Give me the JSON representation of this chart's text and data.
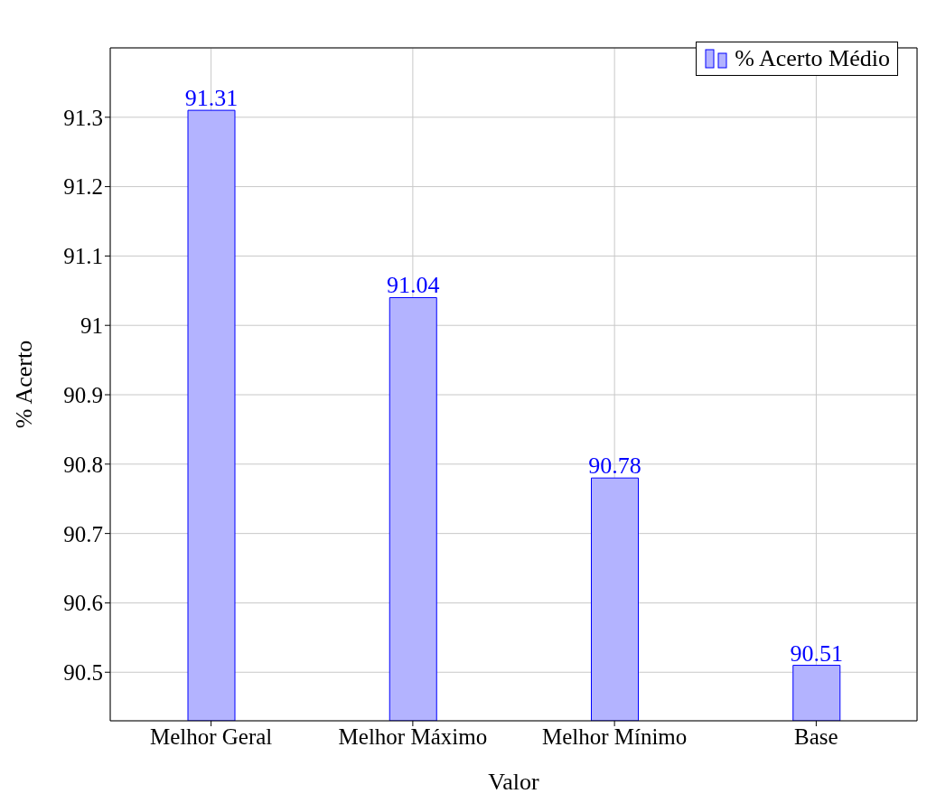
{
  "chart_data": {
    "type": "bar",
    "xlabel": "Valor",
    "ylabel": "% Acerto",
    "categories": [
      "Melhor Geral",
      "Melhor Máximo",
      "Melhor Mínimo",
      "Base"
    ],
    "series": [
      {
        "name": "% Acerto Médio",
        "color": "#b3b3ff",
        "values": [
          91.31,
          91.04,
          90.78,
          90.51
        ]
      }
    ],
    "ylim": [
      90.43,
      91.4
    ],
    "yticks": [
      90.5,
      90.6,
      90.7,
      90.8,
      90.9,
      91,
      91.1,
      91.2,
      91.3
    ],
    "grid": true,
    "legend": "top right",
    "data_labels": true
  }
}
